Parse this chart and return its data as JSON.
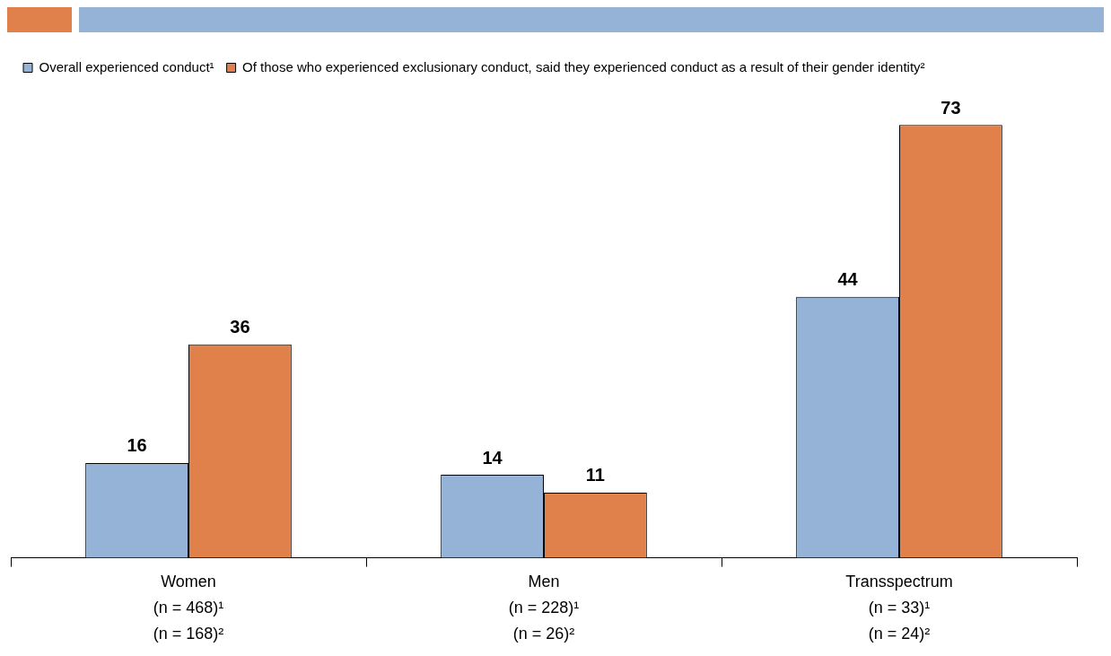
{
  "chart_data": {
    "type": "bar",
    "categories": [
      "Women\n(n = 468)¹\n(n = 168)²",
      "Men\n(n = 228)¹\n(n = 26)²",
      "Transspectrum\n(n = 33)¹\n(n = 24)²"
    ],
    "series": [
      {
        "name": "Overall experienced conduct¹",
        "color": "#95b3d7",
        "values": [
          16,
          14,
          44
        ]
      },
      {
        "name": "Of those who experienced exclusionary conduct, said they experienced conduct as a result of their gender identity²",
        "color": "#e0804a",
        "values": [
          36,
          11,
          73
        ]
      }
    ],
    "data_labels": true,
    "legend": "top left",
    "tick_labels": "x"
  }
}
